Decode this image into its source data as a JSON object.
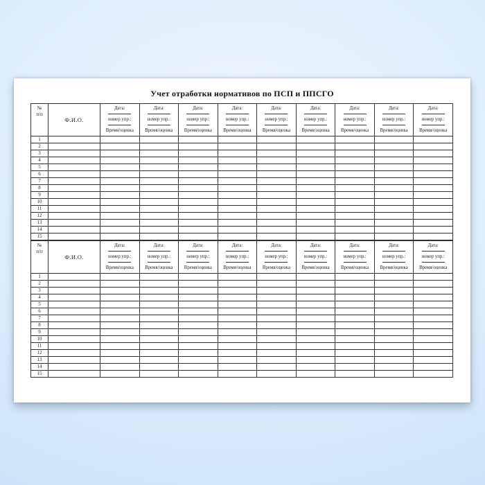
{
  "background": {
    "center_color": "#eef6fe",
    "edge_color": "#c2ddf5",
    "page_color": "#ffffff"
  },
  "document": {
    "title": "Учет отработки нормативов по ПСП и ППСГО",
    "column_headers": {
      "number_line1": "№",
      "number_line2": "п/п",
      "name": "Ф.И.О."
    },
    "session_header": {
      "date_label": "Дата:",
      "exercise_label": "номер упр.:",
      "result_label": "Время/оценка"
    },
    "session_columns": 9,
    "tables": [
      {
        "row_numbers": [
          "1",
          "2",
          "3",
          "4",
          "5",
          "6",
          "7",
          "8",
          "9",
          "10",
          "11",
          "12",
          "13",
          "14",
          "15"
        ]
      },
      {
        "row_numbers": [
          "1",
          "2",
          "3",
          "4",
          "5",
          "6",
          "7",
          "8",
          "9",
          "10",
          "11",
          "12",
          "13",
          "14",
          "15"
        ]
      }
    ]
  }
}
